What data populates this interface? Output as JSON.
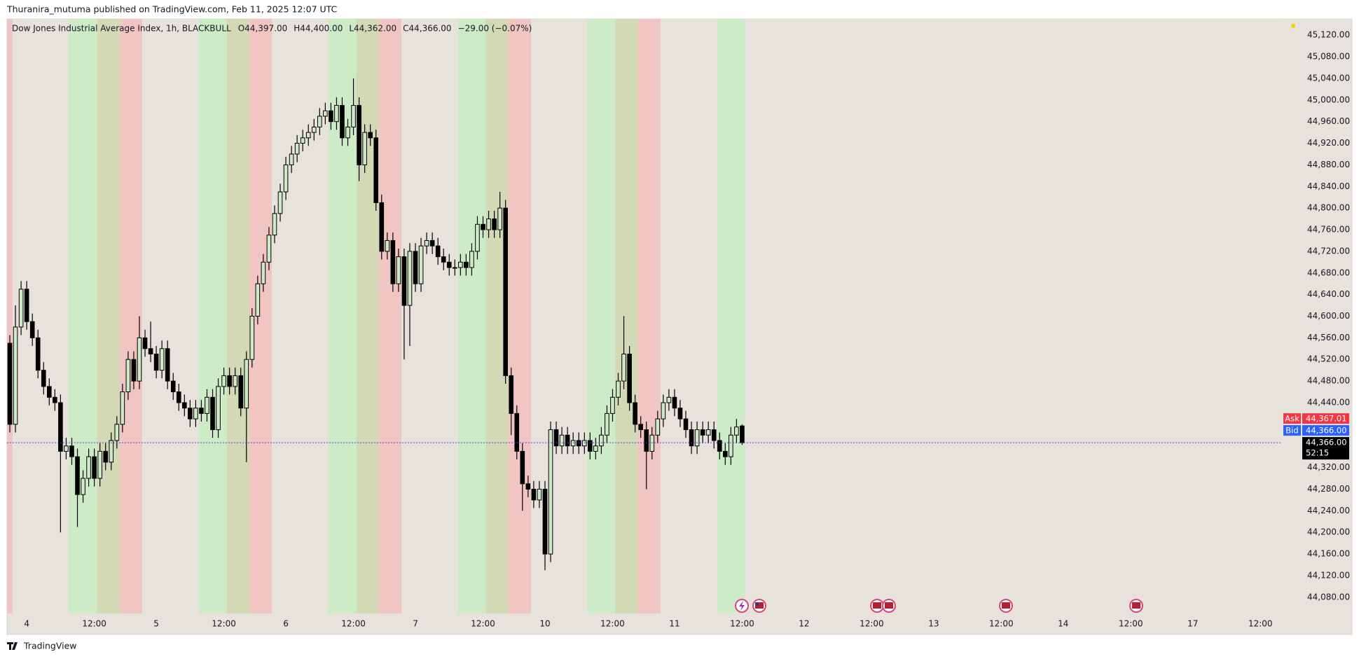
{
  "header": {
    "text": "Thuranira_mutuma published on TradingView.com, Feb 11, 2025 12:07 UTC"
  },
  "footer": {
    "brand": "TradingView"
  },
  "chart_data": {
    "type": "candlestick",
    "title": "Dow Jones Industrial Average Index, 1h, BLACKBULL",
    "legend_values": [
      "O44,397.00",
      "H44,400.00",
      "L44,362.00",
      "C44,366.00",
      "−29.00 (−0.07%)"
    ],
    "x": [
      0,
      1,
      2,
      3,
      4,
      5,
      6,
      7,
      8,
      9,
      10,
      11,
      12,
      13,
      14,
      15,
      16,
      17,
      18,
      19,
      20,
      21,
      22,
      23,
      24,
      25,
      26,
      27,
      28,
      29,
      30,
      31,
      32,
      33,
      34,
      35,
      36,
      37,
      38,
      39,
      40,
      41,
      42,
      43,
      44,
      45,
      46,
      47,
      48,
      49,
      50,
      51,
      52,
      53,
      54,
      55,
      56,
      57,
      58,
      59,
      60,
      61,
      62,
      63,
      64,
      65,
      66,
      67,
      68,
      69,
      70,
      71,
      72,
      73,
      74,
      75,
      76,
      77,
      78,
      79,
      80,
      81,
      82,
      83,
      84,
      85,
      86,
      87,
      88,
      89,
      90,
      91,
      92,
      93,
      94,
      95,
      96,
      97,
      98,
      99,
      100,
      101,
      102,
      103,
      104,
      105,
      106,
      107,
      108,
      109,
      110,
      111,
      112,
      113,
      114,
      115,
      116,
      117,
      118,
      119,
      120,
      121,
      122,
      123,
      124,
      125,
      126,
      127,
      128,
      129,
      130
    ],
    "open": [
      44550,
      44400,
      44580,
      44650,
      44590,
      44560,
      44500,
      44470,
      44450,
      44440,
      44350,
      44360,
      44340,
      44270,
      44300,
      44340,
      44300,
      44350,
      44330,
      44370,
      44400,
      44460,
      44520,
      44480,
      44560,
      44540,
      44530,
      44500,
      44540,
      44480,
      44460,
      44440,
      44430,
      44410,
      44430,
      44420,
      44450,
      44390,
      44470,
      44490,
      44470,
      44490,
      44430,
      44520,
      44600,
      44660,
      44700,
      44750,
      44790,
      44830,
      44880,
      44900,
      44920,
      44930,
      44940,
      44950,
      44970,
      44980,
      44960,
      44990,
      44930,
      44950,
      44990,
      44880,
      44940,
      44930,
      44810,
      44720,
      44740,
      44660,
      44710,
      44620,
      44720,
      44660,
      44730,
      44740,
      44730,
      44710,
      44700,
      44690,
      44690,
      44700,
      44690,
      44720,
      44770,
      44760,
      44780,
      44760,
      44800,
      44490,
      44420,
      44350,
      44290,
      44280,
      44260,
      44280,
      44160,
      44390,
      44360,
      44380,
      44360,
      44370,
      44360,
      44370,
      44350,
      44360,
      44380,
      44420,
      44450,
      44480,
      44530,
      44440,
      44400,
      44390,
      44350,
      44380,
      44410,
      44440,
      44450,
      44430,
      44410,
      44390,
      44360,
      44390,
      44380,
      44390,
      44370,
      44350,
      44340,
      44380,
      44397
    ],
    "high": [
      44565,
      44620,
      44665,
      44665,
      44605,
      44575,
      44515,
      44485,
      44465,
      44455,
      44375,
      44375,
      44355,
      44315,
      44355,
      44355,
      44365,
      44365,
      44385,
      44415,
      44475,
      44535,
      44535,
      44600,
      44575,
      44590,
      44545,
      44555,
      44555,
      44495,
      44475,
      44455,
      44445,
      44445,
      44445,
      44465,
      44465,
      44485,
      44505,
      44505,
      44505,
      44505,
      44535,
      44615,
      44675,
      44715,
      44765,
      44805,
      44845,
      44895,
      44915,
      44935,
      44945,
      44955,
      44965,
      44985,
      44995,
      44995,
      45005,
      45005,
      44965,
      45040,
      45005,
      44955,
      44955,
      44945,
      44825,
      44755,
      44755,
      44725,
      44725,
      44735,
      44735,
      44745,
      44755,
      44755,
      44745,
      44725,
      44715,
      44705,
      44715,
      44715,
      44735,
      44785,
      44785,
      44795,
      44795,
      44830,
      44815,
      44505,
      44435,
      44365,
      44305,
      44295,
      44295,
      44295,
      44405,
      44405,
      44395,
      44395,
      44385,
      44385,
      44385,
      44385,
      44375,
      44395,
      44435,
      44465,
      44495,
      44600,
      44545,
      44455,
      44415,
      44405,
      44395,
      44425,
      44455,
      44465,
      44465,
      44445,
      44425,
      44405,
      44405,
      44405,
      44405,
      44405,
      44385,
      44365,
      44395,
      44410,
      44400
    ],
    "low": [
      44385,
      44385,
      44565,
      44575,
      44545,
      44485,
      44455,
      44435,
      44425,
      44200,
      44335,
      44325,
      44210,
      44255,
      44285,
      44285,
      44285,
      44315,
      44315,
      44355,
      44385,
      44445,
      44465,
      44465,
      44525,
      44515,
      44485,
      44485,
      44465,
      44445,
      44425,
      44415,
      44395,
      44395,
      44405,
      44405,
      44375,
      44375,
      44455,
      44455,
      44455,
      44415,
      44330,
      44505,
      44585,
      44645,
      44685,
      44735,
      44775,
      44815,
      44865,
      44885,
      44905,
      44915,
      44925,
      44935,
      44955,
      44945,
      44945,
      44915,
      44915,
      44935,
      44850,
      44865,
      44915,
      44795,
      44705,
      44705,
      44645,
      44645,
      44520,
      44545,
      44645,
      44645,
      44715,
      44715,
      44695,
      44685,
      44675,
      44675,
      44675,
      44675,
      44675,
      44705,
      44745,
      44745,
      44745,
      44745,
      44475,
      44380,
      44335,
      44240,
      44265,
      44245,
      44245,
      44130,
      44145,
      44345,
      44345,
      44345,
      44345,
      44345,
      44345,
      44335,
      44335,
      44345,
      44365,
      44405,
      44435,
      44465,
      44425,
      44385,
      44375,
      44280,
      44335,
      44365,
      44395,
      44425,
      44415,
      44395,
      44375,
      44345,
      44345,
      44365,
      44365,
      44355,
      44335,
      44325,
      44325,
      44365,
      44362
    ],
    "close": [
      44400,
      44580,
      44650,
      44590,
      44560,
      44500,
      44470,
      44450,
      44440,
      44350,
      44360,
      44340,
      44270,
      44300,
      44340,
      44300,
      44350,
      44330,
      44370,
      44400,
      44460,
      44520,
      44480,
      44560,
      44540,
      44530,
      44500,
      44540,
      44480,
      44460,
      44440,
      44430,
      44410,
      44430,
      44420,
      44450,
      44390,
      44470,
      44490,
      44470,
      44490,
      44430,
      44520,
      44600,
      44660,
      44700,
      44750,
      44790,
      44830,
      44880,
      44900,
      44920,
      44930,
      44940,
      44950,
      44970,
      44980,
      44960,
      44990,
      44930,
      44950,
      44990,
      44880,
      44940,
      44930,
      44810,
      44720,
      44740,
      44660,
      44710,
      44620,
      44720,
      44660,
      44730,
      44740,
      44730,
      44710,
      44700,
      44690,
      44690,
      44700,
      44690,
      44720,
      44770,
      44760,
      44780,
      44760,
      44800,
      44490,
      44420,
      44350,
      44290,
      44280,
      44260,
      44280,
      44160,
      44390,
      44360,
      44380,
      44360,
      44370,
      44360,
      44370,
      44350,
      44360,
      44380,
      44420,
      44450,
      44480,
      44530,
      44440,
      44400,
      44390,
      44350,
      44380,
      44410,
      44440,
      44450,
      44430,
      44410,
      44390,
      44360,
      44390,
      44380,
      44390,
      44370,
      44350,
      44340,
      44380,
      44395,
      44366
    ],
    "up_color": "#cfe9c8",
    "down_color": "#000000",
    "wick_color": "#000000",
    "background": "#e8e2dc",
    "bands": [
      {
        "start": -0.5,
        "end": 0.5,
        "color": "#f0c5c2"
      },
      {
        "start": 10.5,
        "end": 15.5,
        "color": "#cdebc7"
      },
      {
        "start": 15.5,
        "end": 19.5,
        "color": "#d3d9b4"
      },
      {
        "start": 19.5,
        "end": 23.5,
        "color": "#f0c5c2"
      },
      {
        "start": 33.5,
        "end": 38.5,
        "color": "#cdebc7"
      },
      {
        "start": 38.5,
        "end": 42.5,
        "color": "#d3d9b4"
      },
      {
        "start": 42.5,
        "end": 46.5,
        "color": "#f0c5c2"
      },
      {
        "start": 56.5,
        "end": 61.5,
        "color": "#cdebc7"
      },
      {
        "start": 61.5,
        "end": 65.5,
        "color": "#d3d9b4"
      },
      {
        "start": 65.5,
        "end": 69.5,
        "color": "#f0c5c2"
      },
      {
        "start": 79.5,
        "end": 84.5,
        "color": "#cdebc7"
      },
      {
        "start": 84.5,
        "end": 88.5,
        "color": "#d3d9b4"
      },
      {
        "start": 88.5,
        "end": 92.5,
        "color": "#f0c5c2"
      },
      {
        "start": 102.5,
        "end": 107.5,
        "color": "#cdebc7"
      },
      {
        "start": 107.5,
        "end": 111.5,
        "color": "#d3d9b4"
      },
      {
        "start": 111.5,
        "end": 115.5,
        "color": "#f0c5c2"
      },
      {
        "start": 125.5,
        "end": 130.5,
        "color": "#cdebc7"
      }
    ],
    "xlim": [
      -0.5,
      225.7
    ],
    "ylim": [
      44050,
      45150
    ],
    "grid": false,
    "xticks": [
      {
        "value": 3,
        "label": "4"
      },
      {
        "value": 15,
        "label": "12:00"
      },
      {
        "value": 26,
        "label": "5"
      },
      {
        "value": 38,
        "label": "12:00"
      },
      {
        "value": 49,
        "label": "6"
      },
      {
        "value": 61,
        "label": "12:00"
      },
      {
        "value": 72,
        "label": "7"
      },
      {
        "value": 84,
        "label": "12:00"
      },
      {
        "value": 95,
        "label": "10"
      },
      {
        "value": 107,
        "label": "12:00"
      },
      {
        "value": 118,
        "label": "11"
      },
      {
        "value": 130,
        "label": "12:00"
      },
      {
        "value": 141,
        "label": "12"
      },
      {
        "value": 153,
        "label": "12:00"
      },
      {
        "value": 164,
        "label": "13"
      },
      {
        "value": 176,
        "label": "12:00"
      },
      {
        "value": 187,
        "label": "14"
      },
      {
        "value": 199,
        "label": "12:00"
      },
      {
        "value": 210,
        "label": "17"
      },
      {
        "value": 222,
        "label": "12:00"
      }
    ],
    "yticks": [
      {
        "value": 44080,
        "label": "44,080.00"
      },
      {
        "value": 44120,
        "label": "44,120.00"
      },
      {
        "value": 44160,
        "label": "44,160.00"
      },
      {
        "value": 44200,
        "label": "44,200.00"
      },
      {
        "value": 44240,
        "label": "44,240.00"
      },
      {
        "value": 44280,
        "label": "44,280.00"
      },
      {
        "value": 44320,
        "label": "44,320.00"
      },
      {
        "value": 44440,
        "label": "44,440.00"
      },
      {
        "value": 44480,
        "label": "44,480.00"
      },
      {
        "value": 44520,
        "label": "44,520.00"
      },
      {
        "value": 44560,
        "label": "44,560.00"
      },
      {
        "value": 44600,
        "label": "44,600.00"
      },
      {
        "value": 44640,
        "label": "44,640.00"
      },
      {
        "value": 44680,
        "label": "44,680.00"
      },
      {
        "value": 44720,
        "label": "44,720.00"
      },
      {
        "value": 44760,
        "label": "44,760.00"
      },
      {
        "value": 44800,
        "label": "44,800.00"
      },
      {
        "value": 44840,
        "label": "44,840.00"
      },
      {
        "value": 44880,
        "label": "44,880.00"
      },
      {
        "value": 44920,
        "label": "44,920.00"
      },
      {
        "value": 44960,
        "label": "44,960.00"
      },
      {
        "value": 45000,
        "label": "45,000.00"
      },
      {
        "value": 45040,
        "label": "45,040.00"
      },
      {
        "value": 45080,
        "label": "45,080.00"
      },
      {
        "value": 45120,
        "label": "45,120.00"
      }
    ],
    "price_tags": [
      {
        "name": "Ask",
        "value": 44367.01,
        "label": "44,367.01",
        "color": "#f23645"
      },
      {
        "name": "Bid",
        "value": 44366.0,
        "label": "44,366.00",
        "color": "#2962ff"
      }
    ],
    "last_price_label": "44,366.00",
    "countdown": "52:15",
    "last_line_color": "#5b3fd6"
  }
}
